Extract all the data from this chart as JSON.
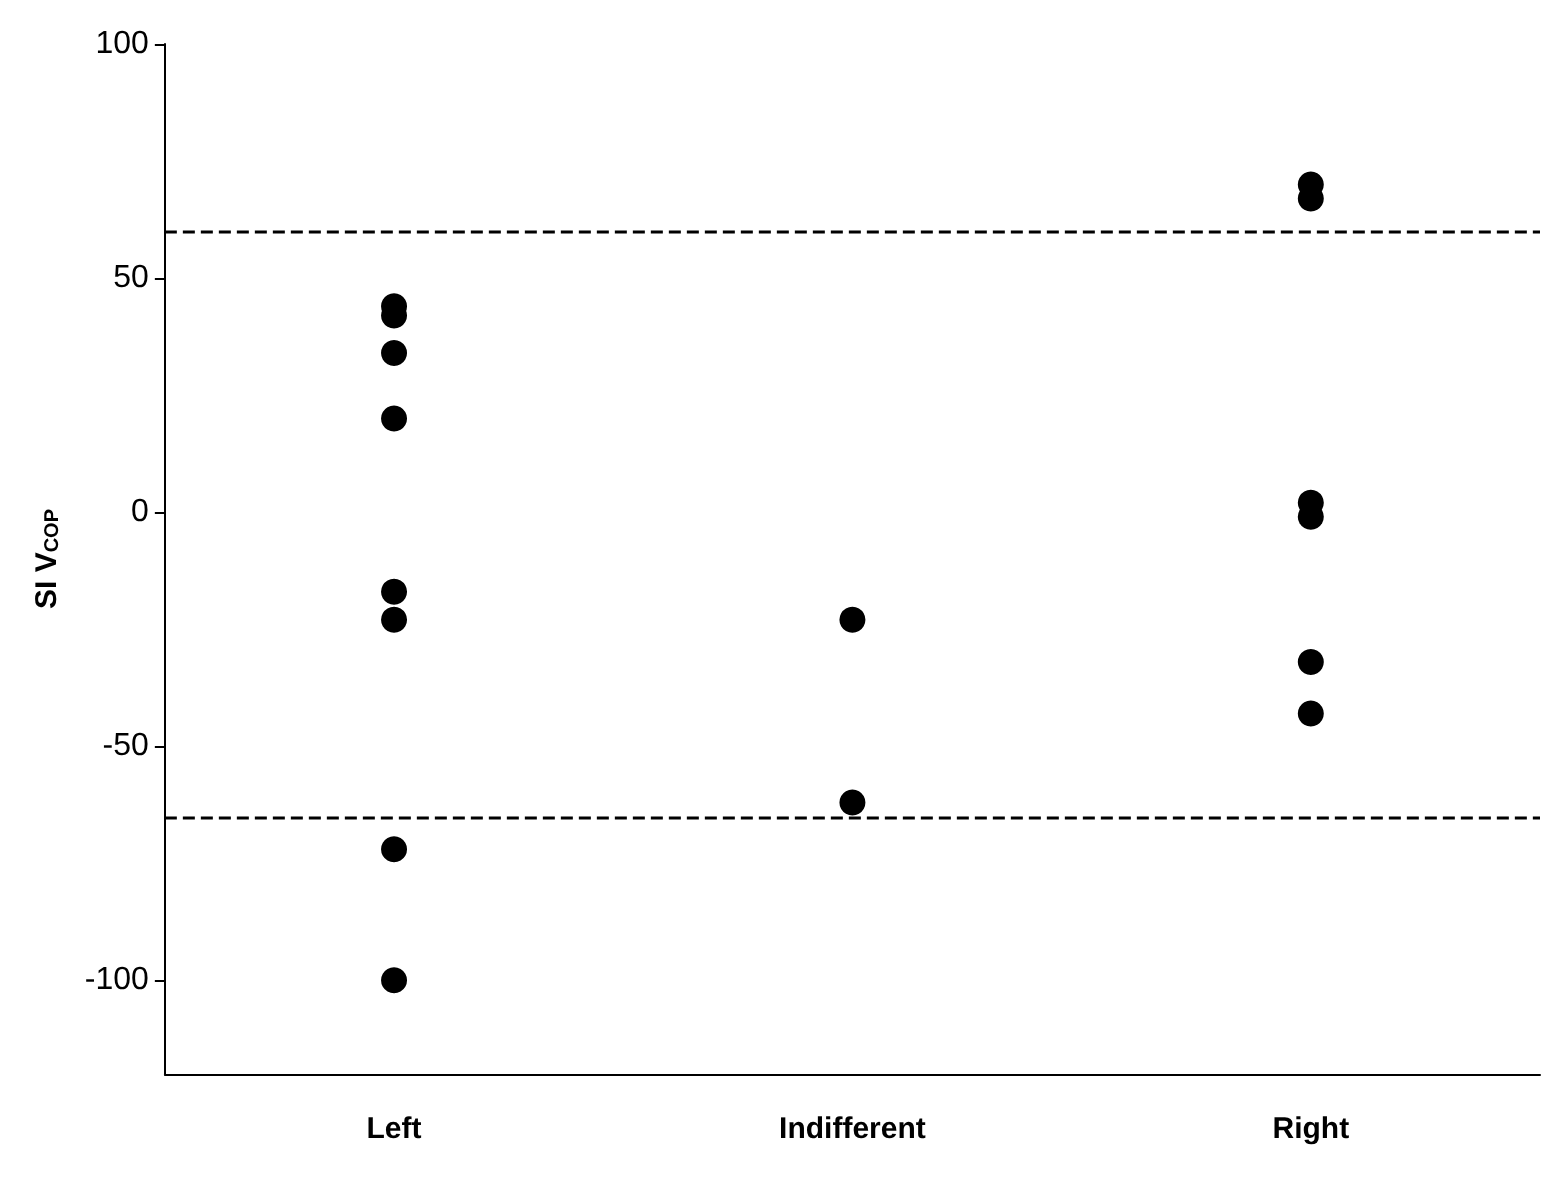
{
  "chart_data": {
    "type": "scatter",
    "ylabel": "SI V$_{COP}$",
    "categories": [
      "Left",
      "Indifferent",
      "Right"
    ],
    "series": [
      {
        "color": "#000000",
        "x": [
          "Left",
          "Left",
          "Left",
          "Left",
          "Left",
          "Left",
          "Left",
          "Left",
          "Indifferent",
          "Indifferent",
          "Right",
          "Right",
          "Right",
          "Right",
          "Right",
          "Right"
        ],
        "values": [
          44,
          42,
          34,
          20,
          -17,
          -23,
          -72,
          -100,
          -23,
          -62,
          70,
          67,
          2,
          -1,
          -32,
          -43
        ]
      }
    ],
    "ylim": [
      -120,
      100
    ],
    "yticks": [
      -100,
      -50,
      0,
      50,
      100
    ],
    "grid": false,
    "marker": "circle",
    "ref_lines": [
      {
        "axis": "y",
        "value": 60,
        "line_style": "dashed",
        "color": "#000000"
      },
      {
        "axis": "y",
        "value": -65,
        "line_style": "dashed",
        "color": "#000000"
      }
    ]
  }
}
